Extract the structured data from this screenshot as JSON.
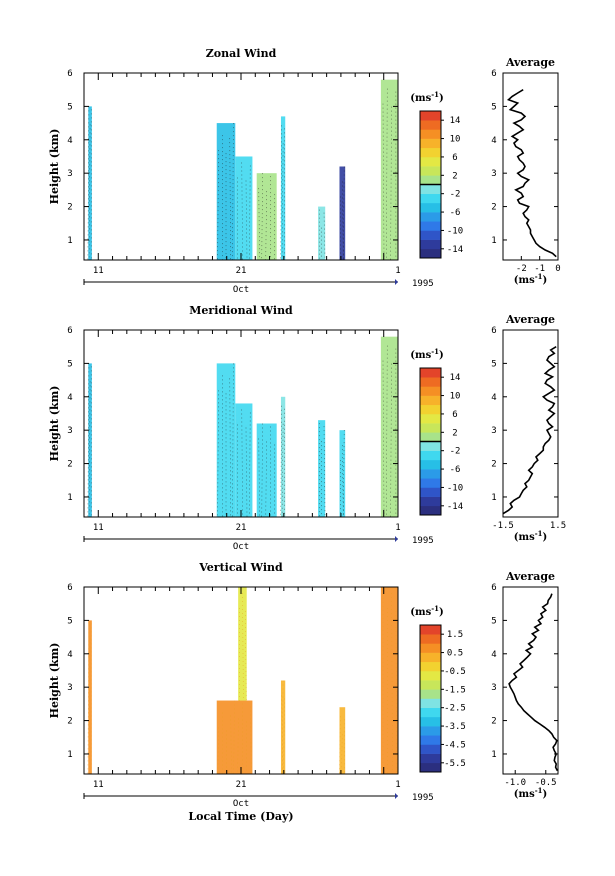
{
  "chart_data": [
    {
      "type": "heatmap",
      "title": "Zonal Wind",
      "ylabel": "Height (km)",
      "ylim": [
        0.4,
        6
      ],
      "yticks": [
        "1",
        "2",
        "3",
        "4",
        "5",
        "6"
      ],
      "xlim": [
        10,
        32
      ],
      "xticks": [
        "11",
        "21",
        "1"
      ],
      "month_label": "Oct",
      "year_label": "1995",
      "colorbar": {
        "unit": "(ms",
        "unit_exp": "-1",
        "unit_close": ")",
        "range": [
          -16,
          16
        ],
        "tick_labels": [
          "14",
          "10",
          "6",
          "2",
          "-2",
          "-6",
          "-10",
          "-14"
        ],
        "zero_line": true
      },
      "data_blocks": [
        {
          "x": [
            10.3,
            10.55
          ],
          "y": [
            0.4,
            5.0
          ],
          "value": -6
        },
        {
          "x": [
            19.3,
            20.6
          ],
          "y": [
            0.4,
            4.5
          ],
          "value": -5
        },
        {
          "x": [
            20.6,
            21.8
          ],
          "y": [
            0.4,
            3.5
          ],
          "value": -3
        },
        {
          "x": [
            22.1,
            23.5
          ],
          "y": [
            0.4,
            3.0
          ],
          "value": 0
        },
        {
          "x": [
            23.8,
            24.1
          ],
          "y": [
            0.4,
            4.7
          ],
          "value": -3
        },
        {
          "x": [
            26.4,
            26.9
          ],
          "y": [
            0.4,
            2.0
          ],
          "value": -2
        },
        {
          "x": [
            27.9,
            28.3
          ],
          "y": [
            0.4,
            3.2
          ],
          "value": -14
        },
        {
          "x": [
            30.8,
            32.0
          ],
          "y": [
            0.4,
            5.8
          ],
          "value": 1
        }
      ],
      "profile": {
        "title": "Average",
        "xlabel": "(ms",
        "xlabel_exp": "-1",
        "xlabel_close": ")",
        "xlim": [
          -3,
          0
        ],
        "xticks": [
          "-2",
          "-1",
          "0"
        ],
        "x": [
          -0.1,
          -0.3,
          -0.7,
          -1.0,
          -1.2,
          -1.3,
          -1.4,
          -1.5,
          -1.5,
          -1.6,
          -1.7,
          -1.6,
          -1.8,
          -1.9,
          -1.7,
          -1.6,
          -2.1,
          -2.2,
          -1.9,
          -2.0,
          -2.3,
          -1.9,
          -1.8,
          -1.6,
          -2.0,
          -2.2,
          -1.9,
          -1.8,
          -1.9,
          -2.1,
          -2.2,
          -1.9,
          -2.0,
          -2.3,
          -2.4,
          -2.2,
          -2.5,
          -2.2,
          -1.9,
          -2.1,
          -2.4,
          -2.0,
          -1.8,
          -2.0,
          -2.6,
          -2.4,
          -2.2,
          -2.7,
          -2.5,
          -2.2,
          -1.9
        ],
        "y": [
          0.5,
          0.6,
          0.7,
          0.8,
          0.9,
          1.0,
          1.1,
          1.2,
          1.3,
          1.4,
          1.5,
          1.6,
          1.7,
          1.8,
          1.9,
          2.0,
          2.1,
          2.2,
          2.3,
          2.4,
          2.5,
          2.6,
          2.7,
          2.8,
          2.9,
          3.0,
          3.1,
          3.2,
          3.3,
          3.4,
          3.5,
          3.6,
          3.7,
          3.8,
          3.9,
          4.0,
          4.1,
          4.2,
          4.3,
          4.4,
          4.5,
          4.6,
          4.7,
          4.8,
          4.9,
          5.0,
          5.1,
          5.2,
          5.3,
          5.4,
          5.5
        ]
      }
    },
    {
      "type": "heatmap",
      "title": "Meridional Wind",
      "ylabel": "Height (km)",
      "ylim": [
        0.4,
        6
      ],
      "yticks": [
        "1",
        "2",
        "3",
        "4",
        "5",
        "6"
      ],
      "xlim": [
        10,
        32
      ],
      "xticks": [
        "11",
        "21",
        "1"
      ],
      "month_label": "Oct",
      "year_label": "1995",
      "colorbar": {
        "unit": "(ms",
        "unit_exp": "-1",
        "unit_close": ")",
        "range": [
          -16,
          16
        ],
        "tick_labels": [
          "14",
          "10",
          "6",
          "2",
          "-2",
          "-6",
          "-10",
          "-14"
        ],
        "zero_line": true
      },
      "data_blocks": [
        {
          "x": [
            10.3,
            10.55
          ],
          "y": [
            0.4,
            5.0
          ],
          "value": -6
        },
        {
          "x": [
            19.3,
            20.6
          ],
          "y": [
            0.4,
            5.0
          ],
          "value": -4
        },
        {
          "x": [
            20.6,
            21.8
          ],
          "y": [
            0.4,
            3.8
          ],
          "value": -3
        },
        {
          "x": [
            22.1,
            23.5
          ],
          "y": [
            0.4,
            3.2
          ],
          "value": -3
        },
        {
          "x": [
            23.8,
            24.1
          ],
          "y": [
            0.4,
            4.0
          ],
          "value": -2
        },
        {
          "x": [
            26.4,
            26.9
          ],
          "y": [
            0.4,
            3.3
          ],
          "value": -3
        },
        {
          "x": [
            27.9,
            28.3
          ],
          "y": [
            0.4,
            3.0
          ],
          "value": -3
        },
        {
          "x": [
            30.8,
            32.0
          ],
          "y": [
            0.4,
            5.8
          ],
          "value": 1
        }
      ],
      "profile": {
        "title": "Average",
        "xlabel": "(ms",
        "xlabel_exp": "-1",
        "xlabel_close": ")",
        "xlim": [
          -1.5,
          1.5
        ],
        "xticks": [
          "-1.5",
          "1.5"
        ],
        "x": [
          -1.5,
          -1.2,
          -1.0,
          -1.1,
          -0.9,
          -0.6,
          -0.5,
          -0.4,
          -0.2,
          -0.3,
          -0.1,
          0.0,
          0.1,
          -0.1,
          0.1,
          0.2,
          0.4,
          0.3,
          0.5,
          0.7,
          0.7,
          0.8,
          1.0,
          1.1,
          1.0,
          0.9,
          1.2,
          1.0,
          0.9,
          1.1,
          1.3,
          1.0,
          1.2,
          1.3,
          0.9,
          0.7,
          1.0,
          1.3,
          1.1,
          0.8,
          0.9,
          1.2,
          0.8,
          1.0,
          1.3,
          1.1,
          0.9,
          1.0,
          1.3,
          1.1,
          1.4
        ],
        "y": [
          0.5,
          0.6,
          0.7,
          0.8,
          0.9,
          1.0,
          1.1,
          1.2,
          1.3,
          1.4,
          1.5,
          1.6,
          1.7,
          1.8,
          1.9,
          2.0,
          2.1,
          2.2,
          2.3,
          2.4,
          2.5,
          2.6,
          2.7,
          2.8,
          2.9,
          3.0,
          3.1,
          3.2,
          3.3,
          3.4,
          3.5,
          3.6,
          3.7,
          3.8,
          3.9,
          4.0,
          4.1,
          4.2,
          4.3,
          4.4,
          4.5,
          4.6,
          4.7,
          4.8,
          4.9,
          5.0,
          5.1,
          5.2,
          5.3,
          5.4,
          5.5
        ]
      }
    },
    {
      "type": "heatmap",
      "title": "Vertical Wind",
      "ylabel": "Height (km)",
      "ylim": [
        0.4,
        6
      ],
      "yticks": [
        "1",
        "2",
        "3",
        "4",
        "5",
        "6"
      ],
      "xlim": [
        10,
        32
      ],
      "xticks": [
        "11",
        "21",
        "1"
      ],
      "month_label": "Oct",
      "year_label": "1995",
      "xlabel": "Local Time (Day)",
      "colorbar": {
        "unit": "(ms",
        "unit_exp": "-1",
        "unit_close": ")",
        "range": [
          -6.5,
          2.5
        ],
        "tick_labels": [
          "1.5",
          "0.5",
          "-0.5",
          "-1.5",
          "-2.5",
          "-3.5",
          "-4.5",
          "-5.5"
        ],
        "zero_line": false
      },
      "data_blocks": [
        {
          "x": [
            10.3,
            10.55
          ],
          "y": [
            0.4,
            5.0
          ],
          "value": 1.2
        },
        {
          "x": [
            19.3,
            21.8
          ],
          "y": [
            0.4,
            2.6
          ],
          "value": 1.0
        },
        {
          "x": [
            20.8,
            21.4
          ],
          "y": [
            2.6,
            6.0
          ],
          "value": -0.5
        },
        {
          "x": [
            23.8,
            24.1
          ],
          "y": [
            0.4,
            3.2
          ],
          "value": 0.8
        },
        {
          "x": [
            27.9,
            28.3
          ],
          "y": [
            0.4,
            2.4
          ],
          "value": 0.8
        },
        {
          "x": [
            30.8,
            32.0
          ],
          "y": [
            0.4,
            6.0
          ],
          "value": 1.0
        }
      ],
      "profile": {
        "title": "Average",
        "xlabel": "(ms",
        "xlabel_exp": "-1",
        "xlabel_close": ")",
        "xlim": [
          -1.2,
          -0.3
        ],
        "xticks": [
          "-1.0",
          "-0.5"
        ],
        "x": [
          -0.31,
          -0.34,
          -0.33,
          -0.36,
          -0.35,
          -0.33,
          -0.36,
          -0.38,
          -0.34,
          -0.32,
          -0.37,
          -0.4,
          -0.45,
          -0.52,
          -0.6,
          -0.68,
          -0.74,
          -0.8,
          -0.86,
          -0.9,
          -0.95,
          -0.98,
          -1.0,
          -1.02,
          -1.05,
          -1.08,
          -1.1,
          -1.05,
          -0.98,
          -1.02,
          -0.95,
          -0.88,
          -0.92,
          -0.86,
          -0.8,
          -0.75,
          -0.82,
          -0.72,
          -0.78,
          -0.7,
          -0.66,
          -0.72,
          -0.62,
          -0.68,
          -0.58,
          -0.62,
          -0.55,
          -0.58,
          -0.5,
          -0.55,
          -0.47,
          -0.46,
          -0.42,
          -0.4
        ],
        "y": [
          0.5,
          0.6,
          0.7,
          0.8,
          0.9,
          1.0,
          1.1,
          1.2,
          1.3,
          1.4,
          1.5,
          1.6,
          1.7,
          1.8,
          1.9,
          2.0,
          2.1,
          2.2,
          2.3,
          2.4,
          2.5,
          2.6,
          2.7,
          2.8,
          2.9,
          3.0,
          3.1,
          3.2,
          3.3,
          3.4,
          3.5,
          3.6,
          3.7,
          3.8,
          3.9,
          4.0,
          4.1,
          4.2,
          4.3,
          4.4,
          4.5,
          4.6,
          4.7,
          4.8,
          4.9,
          5.0,
          5.1,
          5.2,
          5.3,
          5.4,
          5.5,
          5.6,
          5.7,
          5.8
        ]
      }
    }
  ]
}
